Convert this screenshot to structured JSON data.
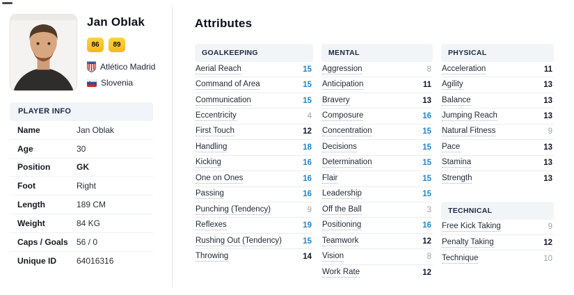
{
  "colors": {
    "accent_blue": "#1d87c9",
    "mid_dark": "#10182a",
    "low_gray": "#9aa3ad",
    "badge_yellow": "#f6bd20",
    "header_bg": "#f2f5f8"
  },
  "profile": {
    "name": "Jan Oblak",
    "ratings": [
      "86",
      "89"
    ],
    "club": "Atlético Madrid",
    "nation": "Slovenia"
  },
  "player_info": {
    "header": "PLAYER INFO",
    "rows": [
      {
        "label": "Name",
        "value": "Jan Oblak"
      },
      {
        "label": "Age",
        "value": "30"
      },
      {
        "label": "Position",
        "value": "GK",
        "bold": true
      },
      {
        "label": "Foot",
        "value": "Right"
      },
      {
        "label": "Length",
        "value": "189 CM"
      },
      {
        "label": "Weight",
        "value": "84 KG"
      },
      {
        "label": "Caps / Goals",
        "value": "56 / 0"
      },
      {
        "label": "Unique ID",
        "value": "64016316"
      }
    ]
  },
  "attributes": {
    "title": "Attributes",
    "sections": [
      {
        "header": "GOALKEEPING",
        "column": 1,
        "rows": [
          {
            "name": "Aerial Reach",
            "value": 15
          },
          {
            "name": "Command of Area",
            "value": 15
          },
          {
            "name": "Communication",
            "value": 15
          },
          {
            "name": "Eccentricity",
            "value": 4
          },
          {
            "name": "First Touch",
            "value": 12
          },
          {
            "name": "Handling",
            "value": 18
          },
          {
            "name": "Kicking",
            "value": 16
          },
          {
            "name": "One on Ones",
            "value": 16
          },
          {
            "name": "Passing",
            "value": 16
          },
          {
            "name": "Punching (Tendency)",
            "value": 9
          },
          {
            "name": "Reflexes",
            "value": 19
          },
          {
            "name": "Rushing Out (Tendency)",
            "value": 15
          },
          {
            "name": "Throwing",
            "value": 14
          }
        ]
      },
      {
        "header": "MENTAL",
        "column": 2,
        "rows": [
          {
            "name": "Aggression",
            "value": 8
          },
          {
            "name": "Anticipation",
            "value": 11
          },
          {
            "name": "Bravery",
            "value": 13
          },
          {
            "name": "Composure",
            "value": 16
          },
          {
            "name": "Concentration",
            "value": 15
          },
          {
            "name": "Decisions",
            "value": 15
          },
          {
            "name": "Determination",
            "value": 15
          },
          {
            "name": "Flair",
            "value": 15
          },
          {
            "name": "Leadership",
            "value": 15
          },
          {
            "name": "Off the Ball",
            "value": 3
          },
          {
            "name": "Positioning",
            "value": 16
          },
          {
            "name": "Teamwork",
            "value": 12
          },
          {
            "name": "Vision",
            "value": 8
          },
          {
            "name": "Work Rate",
            "value": 12
          }
        ]
      },
      {
        "header": "PHYSICAL",
        "column": 3,
        "rows": [
          {
            "name": "Acceleration",
            "value": 11
          },
          {
            "name": "Agility",
            "value": 13
          },
          {
            "name": "Balance",
            "value": 13
          },
          {
            "name": "Jumping Reach",
            "value": 13
          },
          {
            "name": "Natural Fitness",
            "value": 9
          },
          {
            "name": "Pace",
            "value": 13
          },
          {
            "name": "Stamina",
            "value": 13
          },
          {
            "name": "Strength",
            "value": 13
          }
        ]
      },
      {
        "header": "TECHNICAL",
        "column": 3,
        "rows": [
          {
            "name": "Free Kick Taking",
            "value": 9
          },
          {
            "name": "Penalty Taking",
            "value": 12
          },
          {
            "name": "Technique",
            "value": 10
          }
        ]
      }
    ]
  }
}
